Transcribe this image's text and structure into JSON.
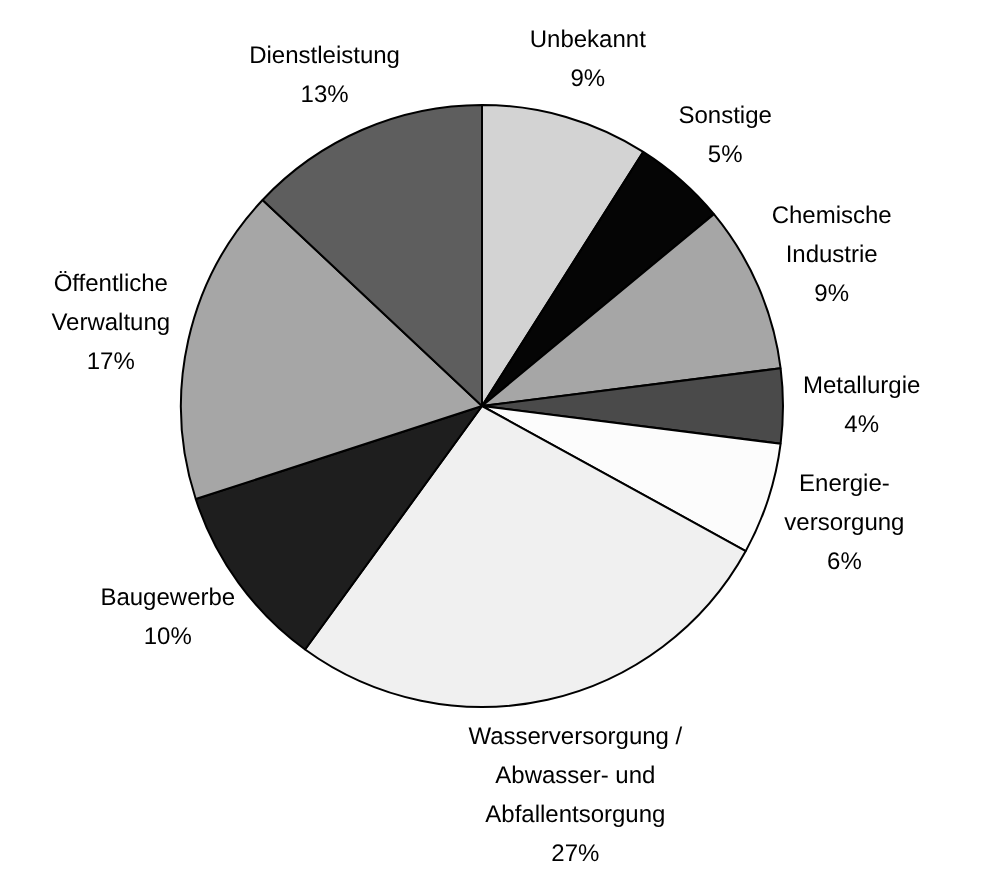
{
  "chart_data": {
    "type": "pie",
    "categories": [
      "Unbekannt",
      "Sonstige",
      "Chemische\nIndustrie",
      "Metallurgie",
      "Energie-\nversorgung",
      "Wasserversorgung /\nAbwasser- und\nAbfallentsorgung",
      "Baugewerbe",
      "Öffentliche\nVerwaltung",
      "Dienstleistung"
    ],
    "values": [
      9,
      5,
      9,
      4,
      6,
      27,
      10,
      17,
      13
    ],
    "colors": [
      "#d3d3d3",
      "#050505",
      "#a6a6a6",
      "#4a4a4a",
      "#fcfcfc",
      "#f0f0f0",
      "#1e1e1e",
      "#a6a6a6",
      "#5e5e5e"
    ],
    "value_labels": [
      "9%",
      "5%",
      "9%",
      "4%",
      "6%",
      "27%",
      "10%",
      "17%",
      "13%"
    ]
  }
}
